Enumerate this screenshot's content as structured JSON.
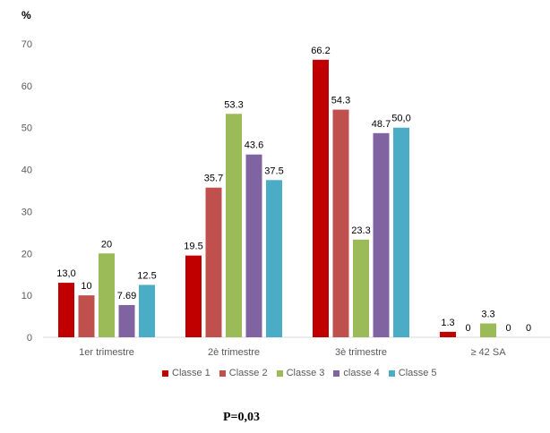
{
  "chart_data": {
    "type": "bar",
    "unit_label": "%",
    "ylim": [
      0,
      70
    ],
    "yticks": [
      "0",
      "10",
      "20",
      "30",
      "40",
      "50",
      "60",
      "70"
    ],
    "categories": [
      "1er trimestre",
      "2è trimestre",
      "3è trimestre",
      "≥ 42 SA"
    ],
    "series": [
      {
        "name": "Classe 1",
        "color": "#c00000",
        "values": [
          13.0,
          19.5,
          66.2,
          1.3
        ],
        "labels": [
          "13,0",
          "19.5",
          "66.2",
          "1.3"
        ]
      },
      {
        "name": "Classe 2",
        "color": "#c0504d",
        "values": [
          10,
          35.7,
          54.3,
          0
        ],
        "labels": [
          "10",
          "35.7",
          "54.3",
          "0"
        ]
      },
      {
        "name": "Classe 3",
        "color": "#9bbb59",
        "values": [
          20,
          53.3,
          23.3,
          3.3
        ],
        "labels": [
          "20",
          "53.3",
          "23.3",
          "3.3"
        ]
      },
      {
        "name": "classe 4",
        "color": "#8064a2",
        "values": [
          7.69,
          43.6,
          48.7,
          0
        ],
        "labels": [
          "7.69",
          "43.6",
          "48.7",
          "0"
        ]
      },
      {
        "name": "Classe 5",
        "color": "#4bacc6",
        "values": [
          12.5,
          37.5,
          50.0,
          0
        ],
        "labels": [
          "12.5",
          "37.5",
          "50,0",
          "0"
        ]
      }
    ],
    "grid": false,
    "legend": "bottom"
  },
  "annotation": "P=0,03"
}
